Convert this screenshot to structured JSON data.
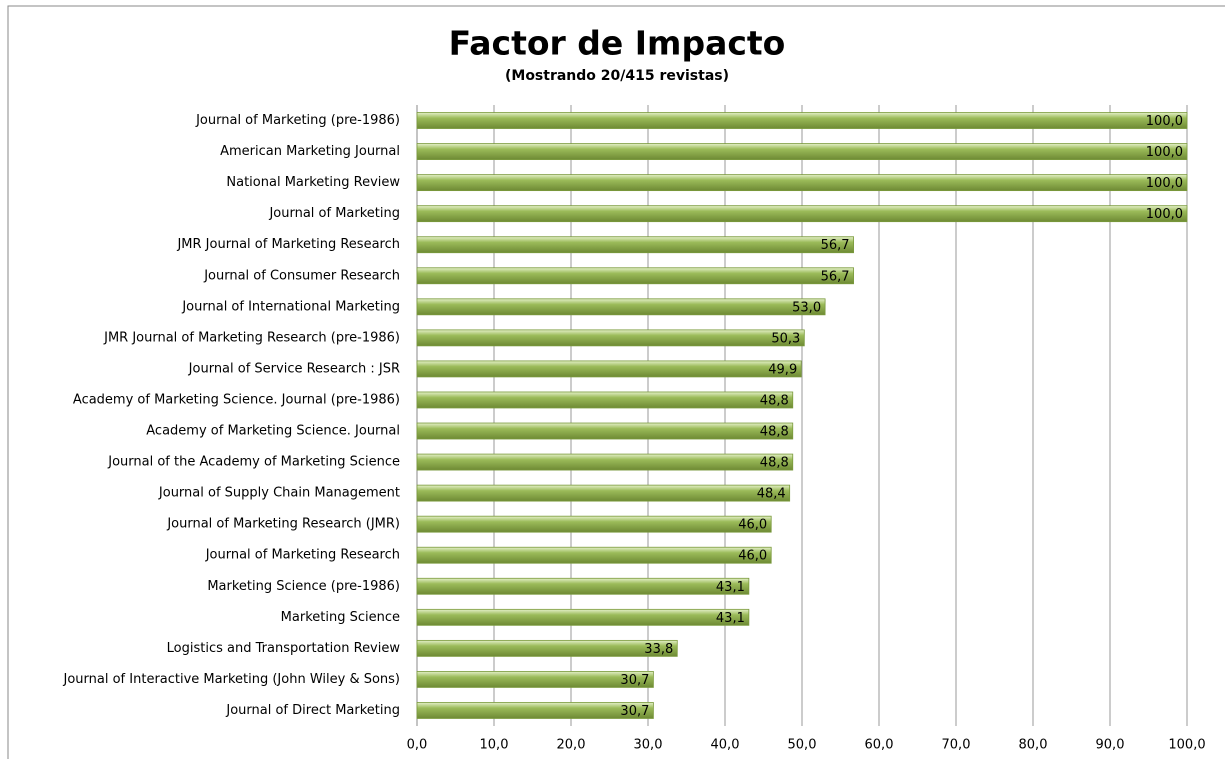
{
  "chart_data": {
    "type": "hbar",
    "title": "Factor de Impacto",
    "subtitle": "(Mostrando 20/415 revistas)",
    "categories": [
      "Journal of Marketing (pre-1986)",
      "American Marketing Journal",
      "National Marketing Review",
      "Journal of Marketing",
      "JMR Journal of Marketing Research",
      "Journal of Consumer Research",
      "Journal of International Marketing",
      "JMR Journal of Marketing Research (pre-1986)",
      "Journal of Service Research : JSR",
      "Academy of Marketing Science. Journal (pre-1986)",
      "Academy of Marketing Science. Journal",
      "Journal of the Academy of Marketing Science",
      "Journal of Supply Chain Management",
      "Journal of Marketing Research (JMR)",
      "Journal of Marketing Research",
      "Marketing Science (pre-1986)",
      "Marketing Science",
      "Logistics and Transportation Review",
      "Journal of Interactive Marketing (John Wiley & Sons)",
      "Journal of Direct Marketing"
    ],
    "values": [
      100,
      100,
      100,
      100,
      56.7,
      56.7,
      53,
      50.3,
      49.9,
      48.8,
      48.8,
      48.8,
      48.4,
      46,
      46,
      43.1,
      43.1,
      33.8,
      30.7,
      30.7
    ],
    "value_labels": [
      "100,0",
      "100,0",
      "100,0",
      "100,0",
      "56,7",
      "56,7",
      "53,0",
      "50,3",
      "49,9",
      "48,8",
      "48,8",
      "48,8",
      "48,4",
      "46,0",
      "46,0",
      "43,1",
      "43,1",
      "33,8",
      "30,7",
      "30,7"
    ],
    "color": "#9bbb59",
    "xlim": [
      0,
      100
    ],
    "xticks": [
      {
        "value": 0,
        "label": "0,0"
      },
      {
        "value": 10,
        "label": "10,0"
      },
      {
        "value": 20,
        "label": "20,0"
      },
      {
        "value": 30,
        "label": "30,0"
      },
      {
        "value": 40,
        "label": "40,0"
      },
      {
        "value": 50,
        "label": "50,0"
      },
      {
        "value": 60,
        "label": "60,0"
      },
      {
        "value": 70,
        "label": "70,0"
      },
      {
        "value": 80,
        "label": "80,0"
      },
      {
        "value": 90,
        "label": "90,0"
      },
      {
        "value": 100,
        "label": "100,0"
      }
    ],
    "grid": true
  }
}
